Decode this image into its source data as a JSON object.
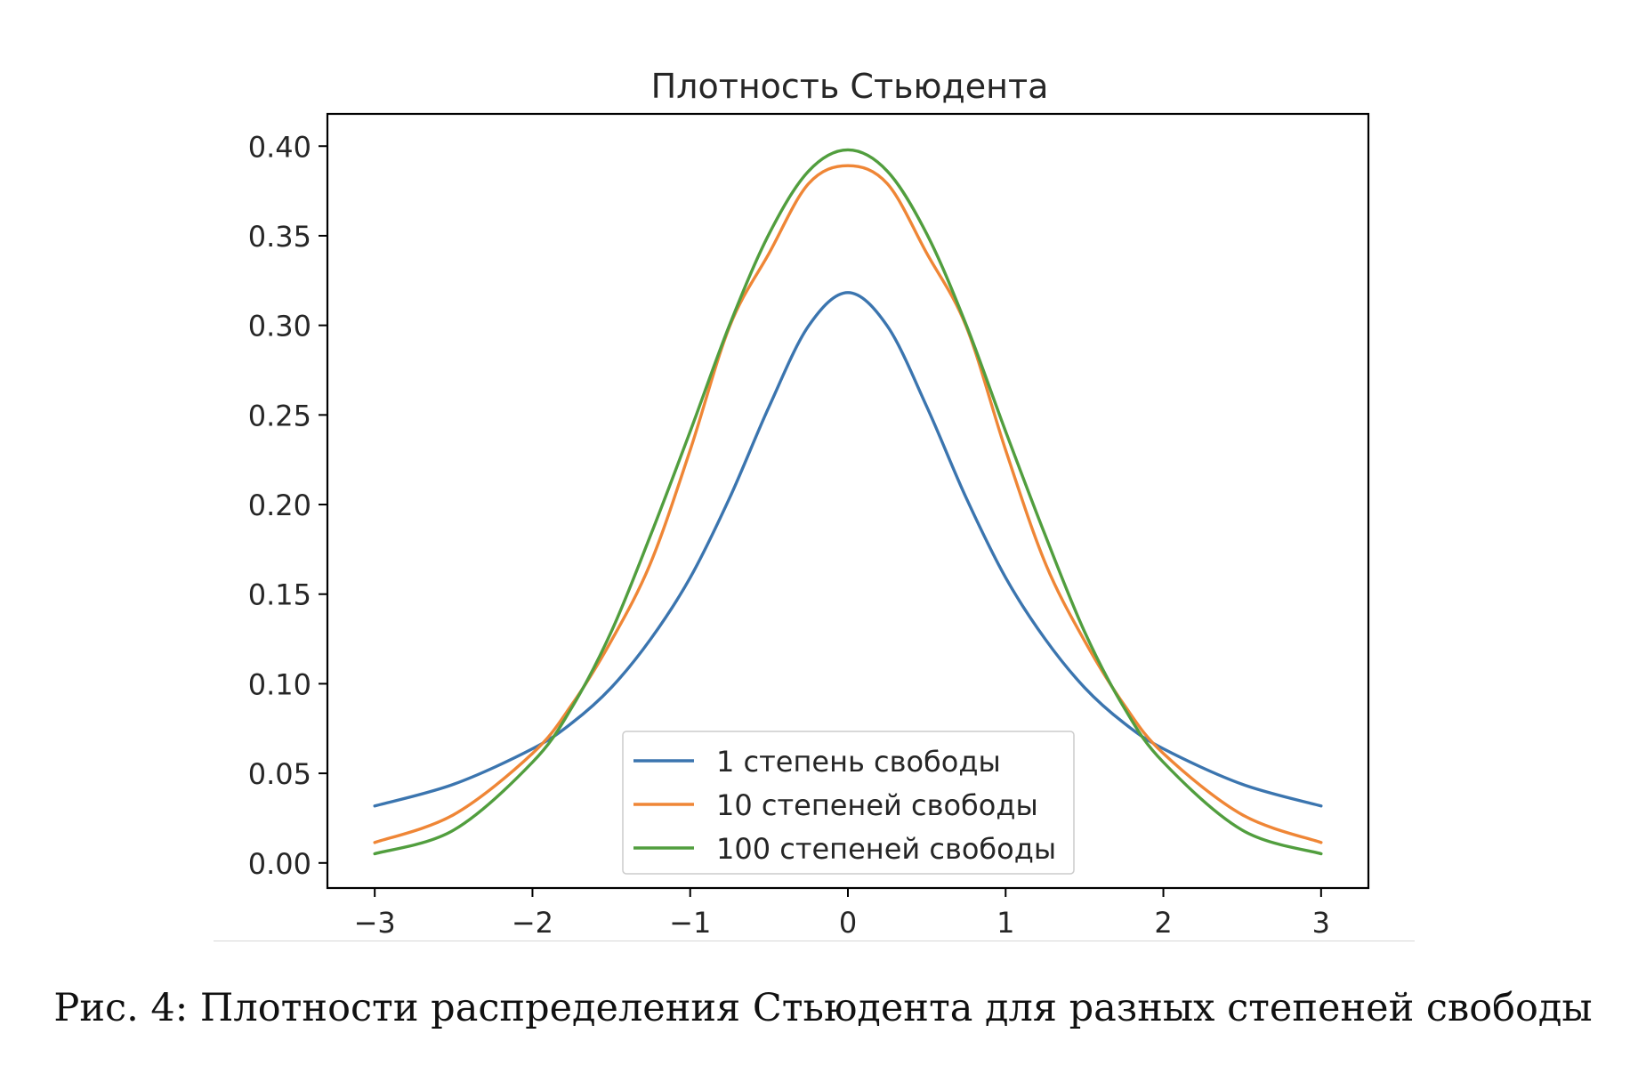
{
  "caption": "Рис. 4: Плотности распределения Стьюдента для разных степеней свободы",
  "chart_data": {
    "type": "line",
    "title": "Плотность Стьюдента",
    "xlabel": "",
    "ylabel": "",
    "xlim": [
      -3.3,
      3.3
    ],
    "ylim": [
      -0.014,
      0.418
    ],
    "x_ticks": [
      -3,
      -2,
      -1,
      0,
      1,
      2,
      3
    ],
    "x_tick_labels": [
      "−3",
      "−2",
      "−1",
      "0",
      "1",
      "2",
      "3"
    ],
    "y_ticks": [
      0.0,
      0.05,
      0.1,
      0.15,
      0.2,
      0.25,
      0.3,
      0.35,
      0.4
    ],
    "y_tick_labels": [
      "0.00",
      "0.05",
      "0.10",
      "0.15",
      "0.20",
      "0.25",
      "0.30",
      "0.35",
      "0.40"
    ],
    "grid": false,
    "legend_position": "bottom-center",
    "x": [
      -3.0,
      -2.5,
      -2.0,
      -1.75,
      -1.5,
      -1.25,
      -1.0,
      -0.75,
      -0.5,
      -0.25,
      0.0,
      0.25,
      0.5,
      0.75,
      1.0,
      1.25,
      1.5,
      1.75,
      2.0,
      2.5,
      3.0
    ],
    "series": [
      {
        "name": "1 степень свободы",
        "color": "#3b75af",
        "values": [
          0.0318,
          0.0439,
          0.0637,
          0.0781,
          0.0979,
          0.125,
          0.1592,
          0.2037,
          0.2546,
          0.2996,
          0.3183,
          0.2996,
          0.2546,
          0.2037,
          0.1592,
          0.125,
          0.0979,
          0.0781,
          0.0637,
          0.0439,
          0.0318
        ]
      },
      {
        "name": "10 степеней свободы",
        "color": "#ef8636",
        "values": [
          0.0114,
          0.0269,
          0.0611,
          0.0884,
          0.124,
          0.1676,
          0.2304,
          0.2994,
          0.3402,
          0.379,
          0.3891,
          0.379,
          0.3402,
          0.2994,
          0.2304,
          0.1676,
          0.124,
          0.0884,
          0.0611,
          0.0269,
          0.0114
        ]
      },
      {
        "name": "100 степеней свободы",
        "color": "#519e3e",
        "values": [
          0.0051,
          0.0183,
          0.0562,
          0.0868,
          0.1291,
          0.1831,
          0.2408,
          0.3003,
          0.351,
          0.386,
          0.3979,
          0.386,
          0.351,
          0.3003,
          0.2408,
          0.1831,
          0.1291,
          0.0868,
          0.0562,
          0.0183,
          0.0051
        ]
      }
    ]
  }
}
